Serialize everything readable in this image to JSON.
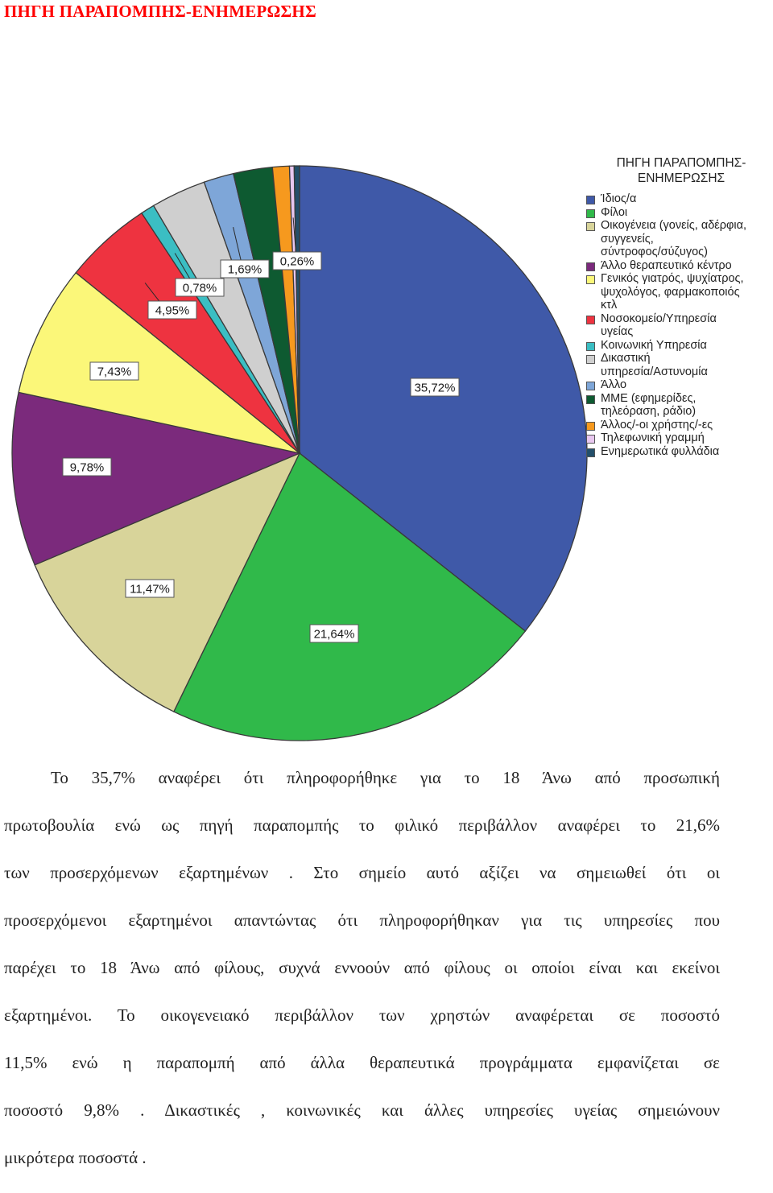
{
  "header": {
    "title": "ΠΗΓΗ ΠΑΡΑΠΟΜΠΗΣ-ΕΝΗΜΕΡΩΣΗΣ"
  },
  "chart_data": {
    "type": "pie",
    "title": "",
    "legend_title": "ΠΗΓΗ ΠΑΡΑΠΟΜΠΗΣ-\nΕΝΗΜΕΡΩΣΗΣ",
    "legend_placement": "right",
    "slices": [
      {
        "name": "Ίδιος/α",
        "value": 35.72,
        "label": "35,72%",
        "color": "#3f59a8"
      },
      {
        "name": "Φίλοι",
        "value": 21.64,
        "label": "21,64%",
        "color": "#30b94a"
      },
      {
        "name": "Οικογένεια (γονείς, αδέρφια, συγγενείς, σύντροφος/σύζυγος)",
        "value": 11.47,
        "label": "11,47%",
        "color": "#d8d49a"
      },
      {
        "name": "Άλλο θεραπευτικό κέντρο",
        "value": 9.78,
        "label": "9,78%",
        "color": "#7b2a7c"
      },
      {
        "name": "Γενικός γιατρός, ψυχίατρος, ψυχολόγος, φαρμακοποιός κτλ",
        "value": 7.43,
        "label": "7,43%",
        "color": "#fbf779"
      },
      {
        "name": "Νοσοκομείο/Υπηρεσία υγείας",
        "value": 4.95,
        "label": "4,95%",
        "color": "#ee3340"
      },
      {
        "name": "Κοινωνική Υπηρεσία",
        "value": 0.78,
        "label": "0,78%",
        "color": "#3bbec3"
      },
      {
        "name": "Δικαστική υπηρεσία/Αστυνομία",
        "value": 3.1,
        "label": "",
        "color": "#cfcfcf"
      },
      {
        "name": "Άλλο",
        "value": 1.69,
        "label": "1,69%",
        "color": "#7ea6d8"
      },
      {
        "name": "ΜΜΕ (εφημερίδες, τηλεόραση, ράδιο)",
        "value": 2.2,
        "label": "",
        "color": "#0e5a31"
      },
      {
        "name": "Άλλος/-οι χρήστης/-ες",
        "value": 0.95,
        "label": "",
        "color": "#f6991e"
      },
      {
        "name": "Τηλεφωνική γραμμή",
        "value": 0.26,
        "label": "0,26%",
        "color": "#e8c7ef"
      },
      {
        "name": "Ενημερωτικά φυλλάδια",
        "value": 0.3,
        "label": "",
        "color": "#234f6a"
      }
    ]
  },
  "legend_items": [
    {
      "label": "Ίδιος/α",
      "color": "#3f59a8"
    },
    {
      "label": "Φίλοι",
      "color": "#30b94a"
    },
    {
      "label": "Οικογένεια (γονείς, αδέρφια,\nσυγγενείς,\nσύντροφος/σύζυγος)",
      "color": "#d8d49a"
    },
    {
      "label": "Άλλο θεραπευτικό κέντρο",
      "color": "#7b2a7c"
    },
    {
      "label": "Γενικός γιατρός, ψυχίατρος,\nψυχολόγος, φαρμακοποιός\nκτλ",
      "color": "#fbf779"
    },
    {
      "label": "Νοσοκομείο/Υπηρεσία\nυγείας",
      "color": "#ee3340"
    },
    {
      "label": "Κοινωνική Υπηρεσία",
      "color": "#3bbec3"
    },
    {
      "label": "Δικαστική\nυπηρεσία/Αστυνομία",
      "color": "#cfcfcf"
    },
    {
      "label": "Άλλο",
      "color": "#7ea6d8"
    },
    {
      "label": "ΜΜΕ (εφημερίδες,\nτηλεόραση, ράδιο)",
      "color": "#0e5a31"
    },
    {
      "label": "Άλλος/-οι χρήστης/-ες",
      "color": "#f6991e"
    },
    {
      "label": "Τηλεφωνική γραμμή",
      "color": "#e8c7ef"
    },
    {
      "label": "Ενημερωτικά φυλλάδια",
      "color": "#234f6a"
    }
  ],
  "body_lines": [
    "Το 35,7% αναφέρει ότι πληροφορήθηκε για το 18 Άνω από προσωπική",
    "πρωτοβουλία ενώ ως πηγή παραπομπής το φιλικό περιβάλλον αναφέρει το 21,6%",
    "των προσερχόμενων εξαρτημένων . Στο σημείο αυτό αξίζει να σημειωθεί ότι οι",
    "προσερχόμενοι εξαρτημένοι απαντώντας ότι πληροφορήθηκαν για τις υπηρεσίες που",
    "παρέχει το 18 Άνω από φίλους, συχνά εννοούν από φίλους οι οποίοι είναι και εκείνοι",
    "εξαρτημένοι. Το οικογενειακό περιβάλλον των χρηστών αναφέρεται σε ποσοστό",
    "11,5% ενώ η παραπομπή από άλλα θεραπευτικά προγράμματα εμφανίζεται σε",
    "ποσοστό 9,8% . Δικαστικές , κοινωνικές και άλλες υπηρεσίες υγείας σημειώνουν",
    "μικρότερα ποσοστά ."
  ]
}
